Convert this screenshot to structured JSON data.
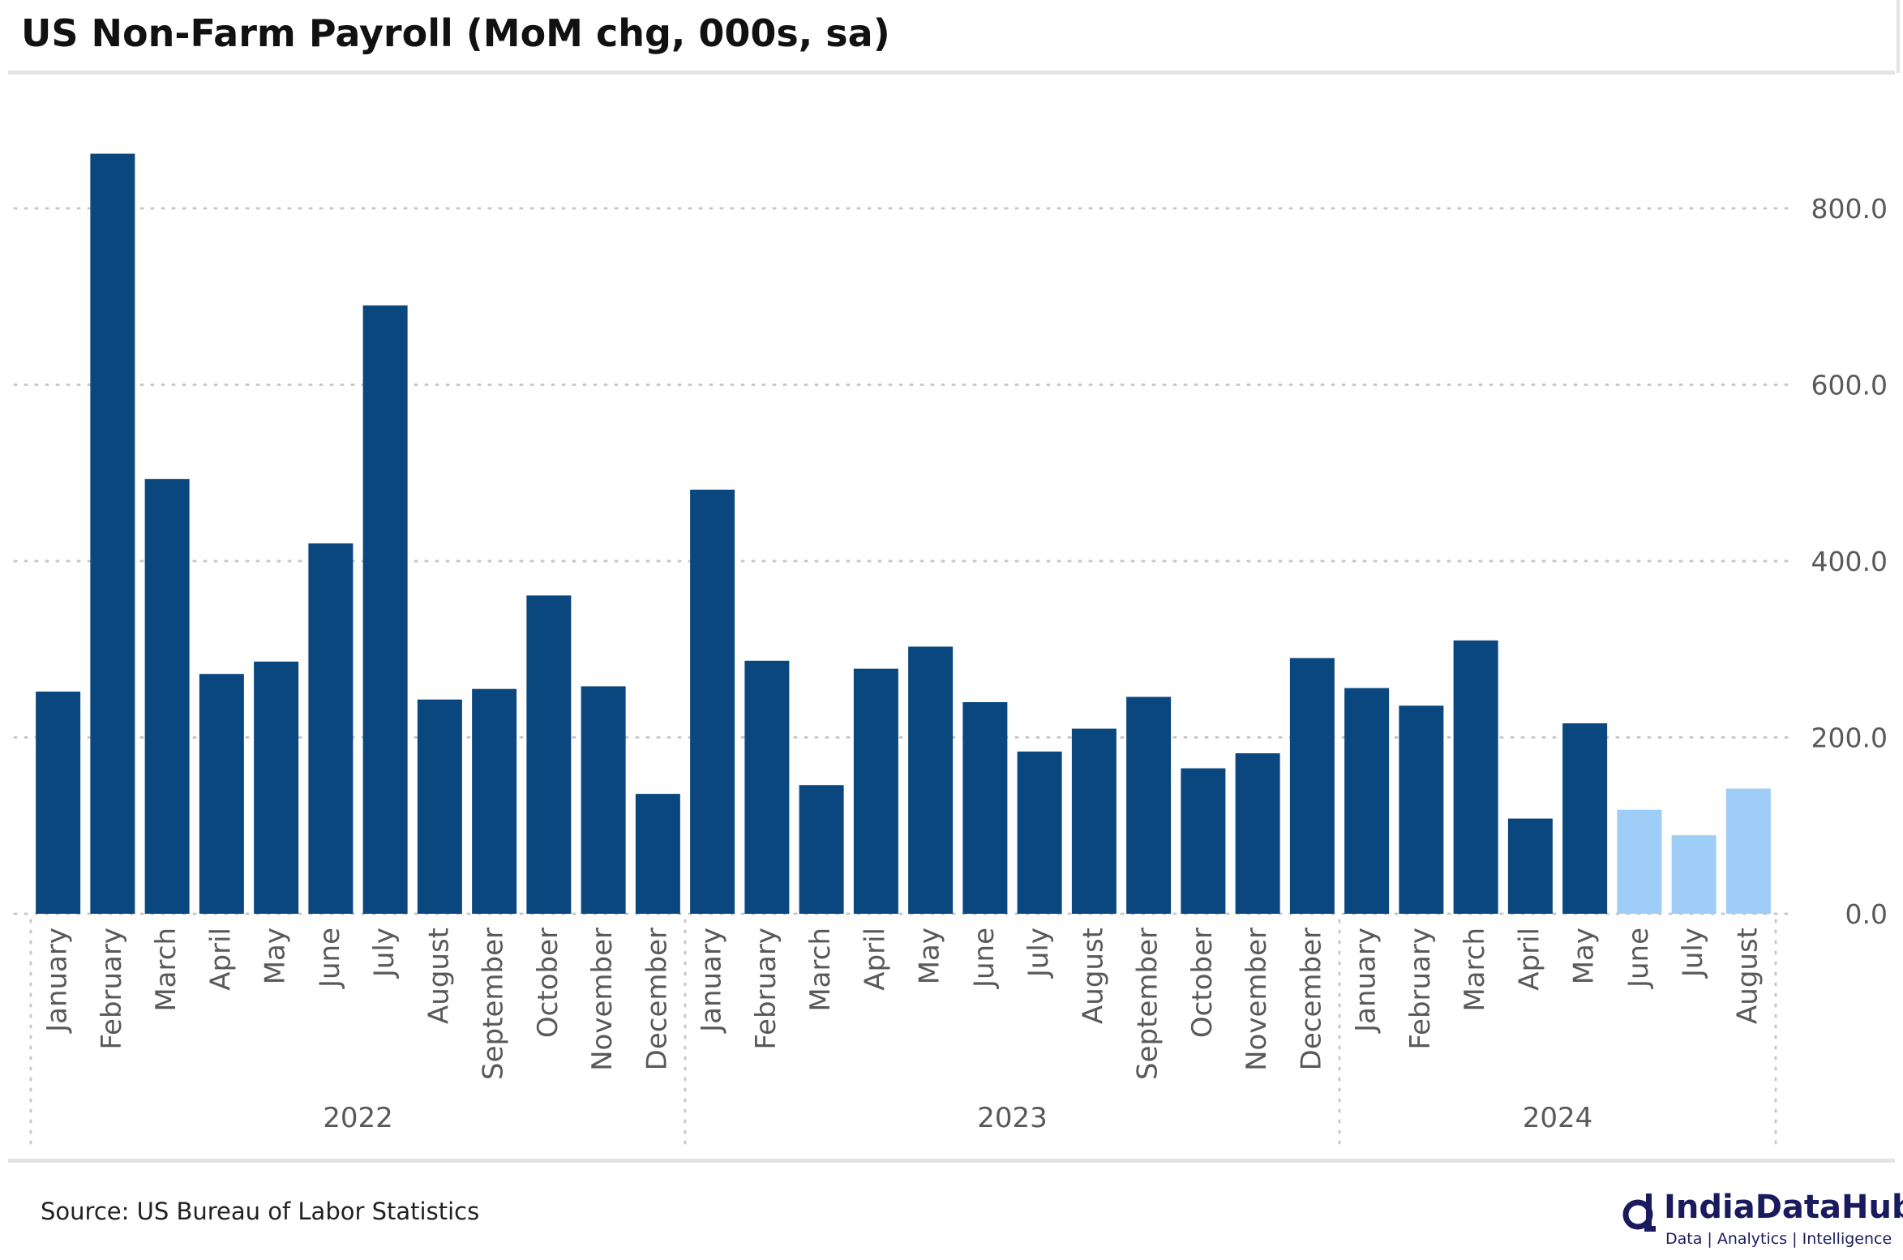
{
  "title": "US Non-Farm Payroll (MoM chg, 000s, sa)",
  "source": "Source: US Bureau of Labor Statistics",
  "logo": {
    "name": "IndiaDataHub",
    "tagline": "Data | Analytics | Intelligence",
    "icon": "q-logo-icon",
    "color": "#1a1a5e"
  },
  "colors": {
    "bar": "#0b477f",
    "bar_highlight": "#9ecdf8",
    "grid": "#c8c8c8",
    "tick_text": "#595959"
  },
  "chart_data": {
    "type": "bar",
    "title": "US Non-Farm Payroll (MoM chg, 000s, sa)",
    "xlabel": "",
    "ylabel": "",
    "ylim": [
      0,
      900
    ],
    "yticks": [
      "0.0",
      "200.0",
      "400.0",
      "600.0",
      "800.0"
    ],
    "ytick_values": [
      0,
      200,
      400,
      600,
      800
    ],
    "y_axis_position": "right",
    "grid": "horizontal dotted",
    "groups": [
      {
        "label": "2022",
        "count": 12
      },
      {
        "label": "2023",
        "count": 12
      },
      {
        "label": "2024",
        "count": 8
      }
    ],
    "categories": [
      "January",
      "February",
      "March",
      "April",
      "May",
      "June",
      "July",
      "August",
      "September",
      "October",
      "November",
      "December",
      "January",
      "February",
      "March",
      "April",
      "May",
      "June",
      "July",
      "August",
      "September",
      "October",
      "November",
      "December",
      "January",
      "February",
      "March",
      "April",
      "May",
      "June",
      "July",
      "August"
    ],
    "values": [
      252,
      862,
      493,
      272,
      286,
      420,
      690,
      243,
      255,
      361,
      258,
      136,
      481,
      287,
      146,
      278,
      303,
      240,
      184,
      210,
      246,
      165,
      182,
      290,
      256,
      236,
      310,
      108,
      216,
      118,
      89,
      142
    ],
    "highlighted": [
      29,
      30,
      31
    ]
  }
}
